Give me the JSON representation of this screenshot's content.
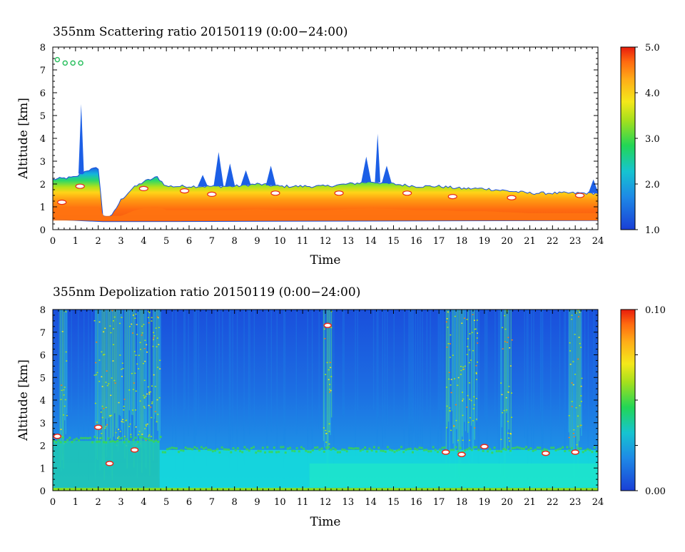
{
  "chart_data": [
    {
      "type": "heatmap",
      "title": "355nm Scattering ratio  20150119 (0:00−24:00)",
      "xlabel": "Time",
      "ylabel": "Altitude [km]",
      "xlim": [
        0,
        24
      ],
      "ylim": [
        0,
        8
      ],
      "x_ticks": [
        "0",
        "1",
        "2",
        "3",
        "4",
        "5",
        "6",
        "7",
        "8",
        "9",
        "10",
        "11",
        "12",
        "13",
        "14",
        "15",
        "16",
        "17",
        "18",
        "19",
        "20",
        "21",
        "22",
        "23",
        "24"
      ],
      "y_ticks": [
        "0",
        "1",
        "2",
        "3",
        "4",
        "5",
        "6",
        "7",
        "8"
      ],
      "colorbar": {
        "min": 1.0,
        "max": 5.0,
        "tick_labels": [
          "5.0",
          "4.0",
          "3.0",
          "2.0",
          "1.0"
        ],
        "tick_values": [
          5,
          4,
          3,
          2,
          1
        ]
      },
      "layer_top_km": [
        [
          0,
          2.2
        ],
        [
          1,
          2.3
        ],
        [
          1.5,
          2.6
        ],
        [
          2,
          2.7
        ],
        [
          2.2,
          0.6
        ],
        [
          2.6,
          0.6
        ],
        [
          3,
          1.3
        ],
        [
          3.5,
          1.8
        ],
        [
          4,
          2.1
        ],
        [
          4.6,
          2.3
        ],
        [
          5,
          1.9
        ],
        [
          6,
          1.9
        ],
        [
          7,
          1.9
        ],
        [
          8,
          1.9
        ],
        [
          9,
          2.0
        ],
        [
          10,
          1.9
        ],
        [
          11,
          1.9
        ],
        [
          12,
          1.9
        ],
        [
          13,
          2.0
        ],
        [
          14,
          2.1
        ],
        [
          15,
          2.0
        ],
        [
          16,
          1.9
        ],
        [
          17,
          1.9
        ],
        [
          18,
          1.8
        ],
        [
          19,
          1.8
        ],
        [
          20,
          1.7
        ],
        [
          21,
          1.6
        ],
        [
          22,
          1.6
        ],
        [
          23,
          1.6
        ],
        [
          24,
          1.6
        ]
      ],
      "spikes": [
        [
          1.25,
          5.5
        ],
        [
          7.3,
          3.4
        ],
        [
          7.8,
          2.9
        ],
        [
          8.5,
          2.6
        ],
        [
          9.6,
          2.8
        ],
        [
          13.8,
          3.2
        ],
        [
          14.3,
          4.2
        ],
        [
          14.7,
          2.8
        ],
        [
          6.6,
          2.4
        ],
        [
          23.8,
          2.2
        ]
      ],
      "high_cloud": {
        "x_start": 0.2,
        "x_end": 1.4,
        "altitude_km": 7.3
      }
    },
    {
      "type": "heatmap",
      "title": "355nm Depolization ratio  20150119 (0:00−24:00)",
      "xlabel": "Time",
      "ylabel": "Altitude [km]",
      "xlim": [
        0,
        24
      ],
      "ylim": [
        0,
        8
      ],
      "x_ticks": [
        "0",
        "1",
        "2",
        "3",
        "4",
        "5",
        "6",
        "7",
        "8",
        "9",
        "10",
        "11",
        "12",
        "13",
        "14",
        "15",
        "16",
        "17",
        "18",
        "19",
        "20",
        "21",
        "22",
        "23",
        "24"
      ],
      "y_ticks": [
        "0",
        "1",
        "2",
        "3",
        "4",
        "5",
        "6",
        "7",
        "8"
      ],
      "colorbar": {
        "min": 0.0,
        "max": 0.1,
        "tick_labels": [
          "0.10",
          "0.00"
        ],
        "tick_values": [
          0.1,
          0.0
        ]
      },
      "noisy_intervals": [
        [
          1.8,
          4.7
        ],
        [
          17.3,
          18.7
        ],
        [
          0.3,
          0.6
        ],
        [
          11.9,
          12.3
        ],
        [
          19.7,
          20.2
        ],
        [
          22.7,
          23.3
        ]
      ],
      "boundary_layer_km": 1.8
    }
  ]
}
